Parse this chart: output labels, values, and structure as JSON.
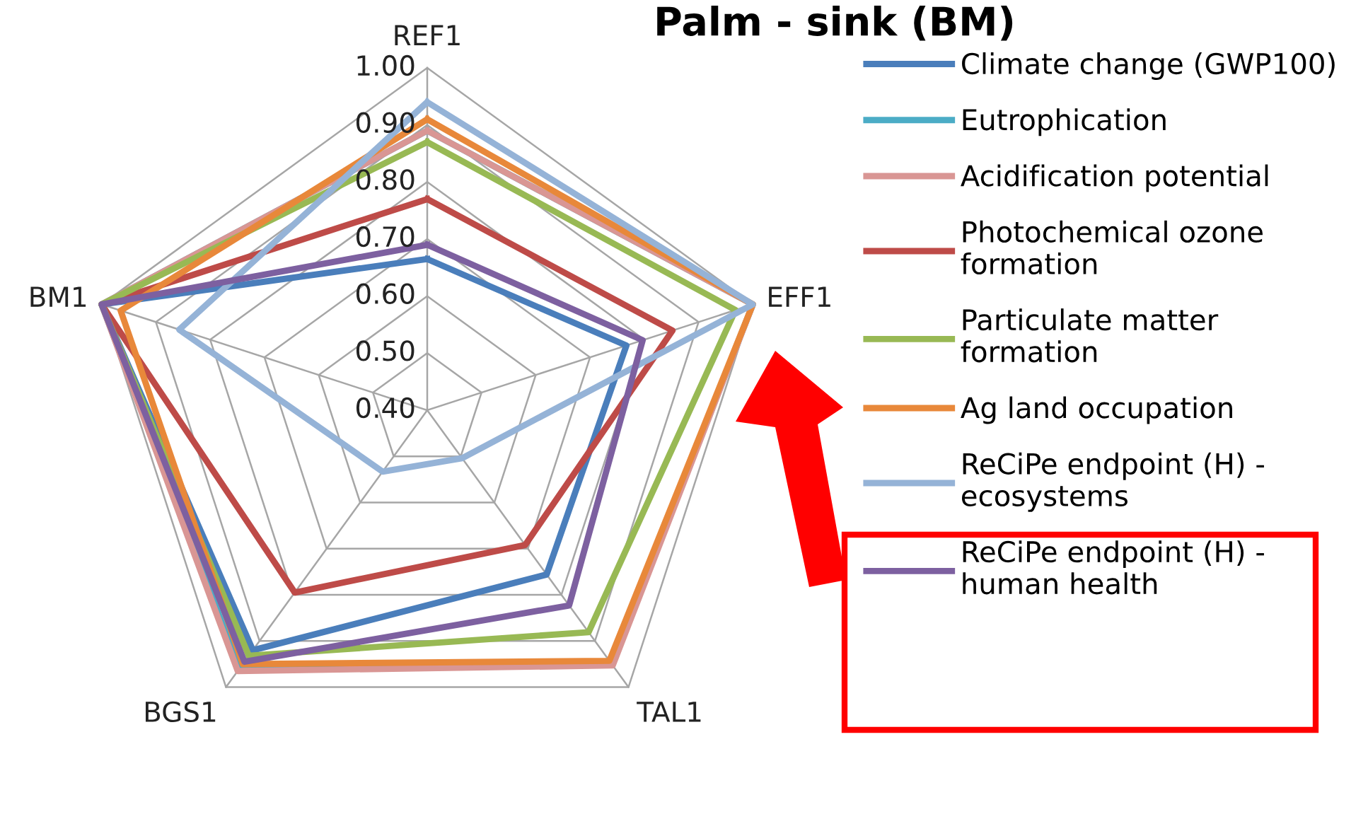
{
  "chart_data": {
    "type": "radar",
    "title": "Palm - sink (BM)",
    "categories": [
      "REF1",
      "EFF1",
      "TAL1",
      "BGS1",
      "BM1"
    ],
    "ylim": [
      0.4,
      1.0
    ],
    "yticks": [
      {
        "value": 0.4,
        "label": "0.40"
      },
      {
        "value": 0.5,
        "label": "0.50"
      },
      {
        "value": 0.6,
        "label": "0.60"
      },
      {
        "value": 0.7,
        "label": "0.70"
      },
      {
        "value": 0.8,
        "label": "0.80"
      },
      {
        "value": 0.9,
        "label": "0.90"
      },
      {
        "value": 1.0,
        "label": "1.00"
      }
    ],
    "grid": true,
    "legend": "right",
    "marker": "none",
    "series": [
      {
        "name": "Climate change (GWP100)",
        "color": "#4a7ebb",
        "values": [
          0.665,
          0.767,
          0.756,
          0.92,
          1.0
        ]
      },
      {
        "name": "Eutrophication",
        "color": "#4bacc6",
        "values": [
          0.89,
          1.0,
          0.95,
          0.96,
          1.0
        ]
      },
      {
        "name": "Acidification potential",
        "color": "#d99694",
        "values": [
          0.89,
          1.0,
          0.953,
          0.965,
          1.0
        ]
      },
      {
        "name": "Photochemical ozone\nformation",
        "color": "#be4b48",
        "values": [
          0.77,
          0.852,
          0.692,
          0.795,
          1.0
        ]
      },
      {
        "name": "Particulate matter\nformation",
        "color": "#98b954",
        "values": [
          0.87,
          0.968,
          0.881,
          0.932,
          1.0
        ]
      },
      {
        "name": "Ag land occupation",
        "color": "#e8883a",
        "values": [
          0.91,
          1.0,
          0.943,
          0.95,
          0.965
        ]
      },
      {
        "name": "ReCiPe endpoint (H) -\necosystems",
        "color": "#95b3d7",
        "values": [
          0.94,
          1.0,
          0.504,
          0.533,
          0.857
        ]
      },
      {
        "name": "ReCiPe endpoint (H) -\nhuman health",
        "color": "#7d60a0",
        "values": [
          0.69,
          0.797,
          0.823,
          0.945,
          1.0
        ]
      }
    ]
  }
}
